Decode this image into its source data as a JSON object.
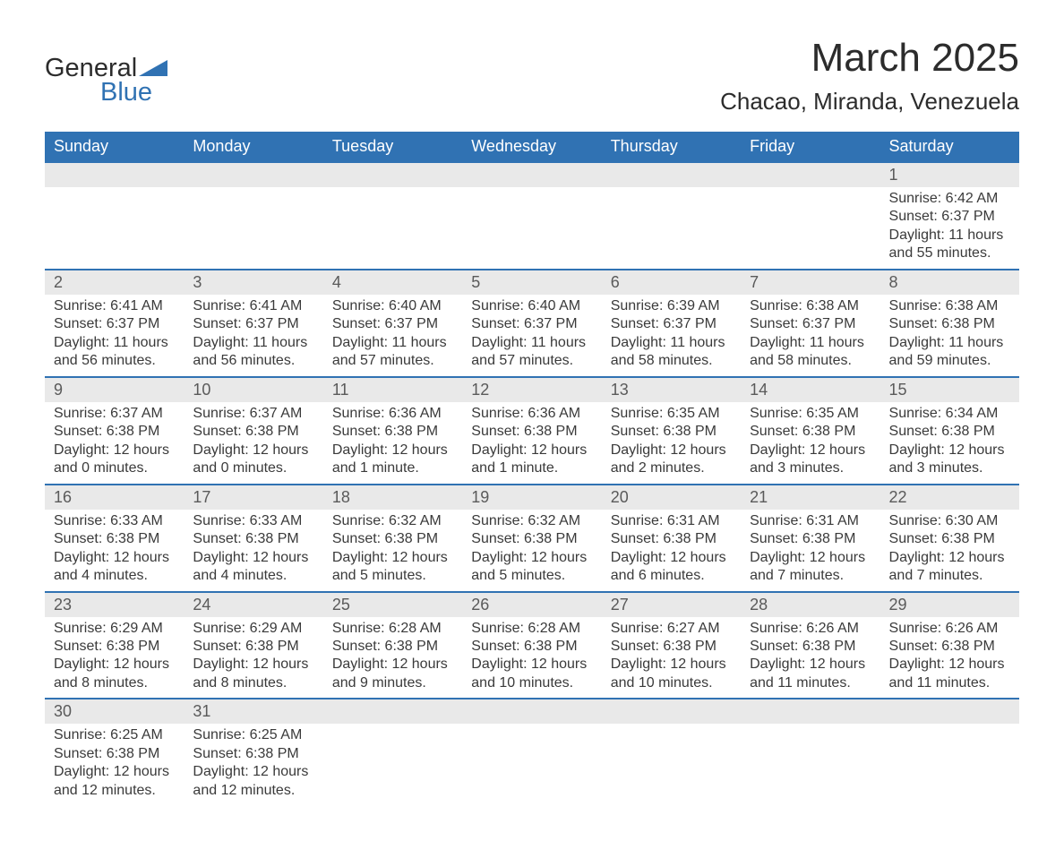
{
  "logo": {
    "text1": "General",
    "text2": "Blue",
    "shape_color": "#3072b3"
  },
  "title": "March 2025",
  "location": "Chacao, Miranda, Venezuela",
  "colors": {
    "header_bg": "#3072b3",
    "header_text": "#ffffff",
    "daynum_bg": "#e9e9e9",
    "row_border": "#3072b3",
    "body_text": "#3a3a3a"
  },
  "day_headers": [
    "Sunday",
    "Monday",
    "Tuesday",
    "Wednesday",
    "Thursday",
    "Friday",
    "Saturday"
  ],
  "weeks": [
    [
      null,
      null,
      null,
      null,
      null,
      null,
      {
        "n": "1",
        "sr": "Sunrise: 6:42 AM",
        "ss": "Sunset: 6:37 PM",
        "dl": "Daylight: 11 hours and 55 minutes."
      }
    ],
    [
      {
        "n": "2",
        "sr": "Sunrise: 6:41 AM",
        "ss": "Sunset: 6:37 PM",
        "dl": "Daylight: 11 hours and 56 minutes."
      },
      {
        "n": "3",
        "sr": "Sunrise: 6:41 AM",
        "ss": "Sunset: 6:37 PM",
        "dl": "Daylight: 11 hours and 56 minutes."
      },
      {
        "n": "4",
        "sr": "Sunrise: 6:40 AM",
        "ss": "Sunset: 6:37 PM",
        "dl": "Daylight: 11 hours and 57 minutes."
      },
      {
        "n": "5",
        "sr": "Sunrise: 6:40 AM",
        "ss": "Sunset: 6:37 PM",
        "dl": "Daylight: 11 hours and 57 minutes."
      },
      {
        "n": "6",
        "sr": "Sunrise: 6:39 AM",
        "ss": "Sunset: 6:37 PM",
        "dl": "Daylight: 11 hours and 58 minutes."
      },
      {
        "n": "7",
        "sr": "Sunrise: 6:38 AM",
        "ss": "Sunset: 6:37 PM",
        "dl": "Daylight: 11 hours and 58 minutes."
      },
      {
        "n": "8",
        "sr": "Sunrise: 6:38 AM",
        "ss": "Sunset: 6:38 PM",
        "dl": "Daylight: 11 hours and 59 minutes."
      }
    ],
    [
      {
        "n": "9",
        "sr": "Sunrise: 6:37 AM",
        "ss": "Sunset: 6:38 PM",
        "dl": "Daylight: 12 hours and 0 minutes."
      },
      {
        "n": "10",
        "sr": "Sunrise: 6:37 AM",
        "ss": "Sunset: 6:38 PM",
        "dl": "Daylight: 12 hours and 0 minutes."
      },
      {
        "n": "11",
        "sr": "Sunrise: 6:36 AM",
        "ss": "Sunset: 6:38 PM",
        "dl": "Daylight: 12 hours and 1 minute."
      },
      {
        "n": "12",
        "sr": "Sunrise: 6:36 AM",
        "ss": "Sunset: 6:38 PM",
        "dl": "Daylight: 12 hours and 1 minute."
      },
      {
        "n": "13",
        "sr": "Sunrise: 6:35 AM",
        "ss": "Sunset: 6:38 PM",
        "dl": "Daylight: 12 hours and 2 minutes."
      },
      {
        "n": "14",
        "sr": "Sunrise: 6:35 AM",
        "ss": "Sunset: 6:38 PM",
        "dl": "Daylight: 12 hours and 3 minutes."
      },
      {
        "n": "15",
        "sr": "Sunrise: 6:34 AM",
        "ss": "Sunset: 6:38 PM",
        "dl": "Daylight: 12 hours and 3 minutes."
      }
    ],
    [
      {
        "n": "16",
        "sr": "Sunrise: 6:33 AM",
        "ss": "Sunset: 6:38 PM",
        "dl": "Daylight: 12 hours and 4 minutes."
      },
      {
        "n": "17",
        "sr": "Sunrise: 6:33 AM",
        "ss": "Sunset: 6:38 PM",
        "dl": "Daylight: 12 hours and 4 minutes."
      },
      {
        "n": "18",
        "sr": "Sunrise: 6:32 AM",
        "ss": "Sunset: 6:38 PM",
        "dl": "Daylight: 12 hours and 5 minutes."
      },
      {
        "n": "19",
        "sr": "Sunrise: 6:32 AM",
        "ss": "Sunset: 6:38 PM",
        "dl": "Daylight: 12 hours and 5 minutes."
      },
      {
        "n": "20",
        "sr": "Sunrise: 6:31 AM",
        "ss": "Sunset: 6:38 PM",
        "dl": "Daylight: 12 hours and 6 minutes."
      },
      {
        "n": "21",
        "sr": "Sunrise: 6:31 AM",
        "ss": "Sunset: 6:38 PM",
        "dl": "Daylight: 12 hours and 7 minutes."
      },
      {
        "n": "22",
        "sr": "Sunrise: 6:30 AM",
        "ss": "Sunset: 6:38 PM",
        "dl": "Daylight: 12 hours and 7 minutes."
      }
    ],
    [
      {
        "n": "23",
        "sr": "Sunrise: 6:29 AM",
        "ss": "Sunset: 6:38 PM",
        "dl": "Daylight: 12 hours and 8 minutes."
      },
      {
        "n": "24",
        "sr": "Sunrise: 6:29 AM",
        "ss": "Sunset: 6:38 PM",
        "dl": "Daylight: 12 hours and 8 minutes."
      },
      {
        "n": "25",
        "sr": "Sunrise: 6:28 AM",
        "ss": "Sunset: 6:38 PM",
        "dl": "Daylight: 12 hours and 9 minutes."
      },
      {
        "n": "26",
        "sr": "Sunrise: 6:28 AM",
        "ss": "Sunset: 6:38 PM",
        "dl": "Daylight: 12 hours and 10 minutes."
      },
      {
        "n": "27",
        "sr": "Sunrise: 6:27 AM",
        "ss": "Sunset: 6:38 PM",
        "dl": "Daylight: 12 hours and 10 minutes."
      },
      {
        "n": "28",
        "sr": "Sunrise: 6:26 AM",
        "ss": "Sunset: 6:38 PM",
        "dl": "Daylight: 12 hours and 11 minutes."
      },
      {
        "n": "29",
        "sr": "Sunrise: 6:26 AM",
        "ss": "Sunset: 6:38 PM",
        "dl": "Daylight: 12 hours and 11 minutes."
      }
    ],
    [
      {
        "n": "30",
        "sr": "Sunrise: 6:25 AM",
        "ss": "Sunset: 6:38 PM",
        "dl": "Daylight: 12 hours and 12 minutes."
      },
      {
        "n": "31",
        "sr": "Sunrise: 6:25 AM",
        "ss": "Sunset: 6:38 PM",
        "dl": "Daylight: 12 hours and 12 minutes."
      },
      null,
      null,
      null,
      null,
      null
    ]
  ]
}
